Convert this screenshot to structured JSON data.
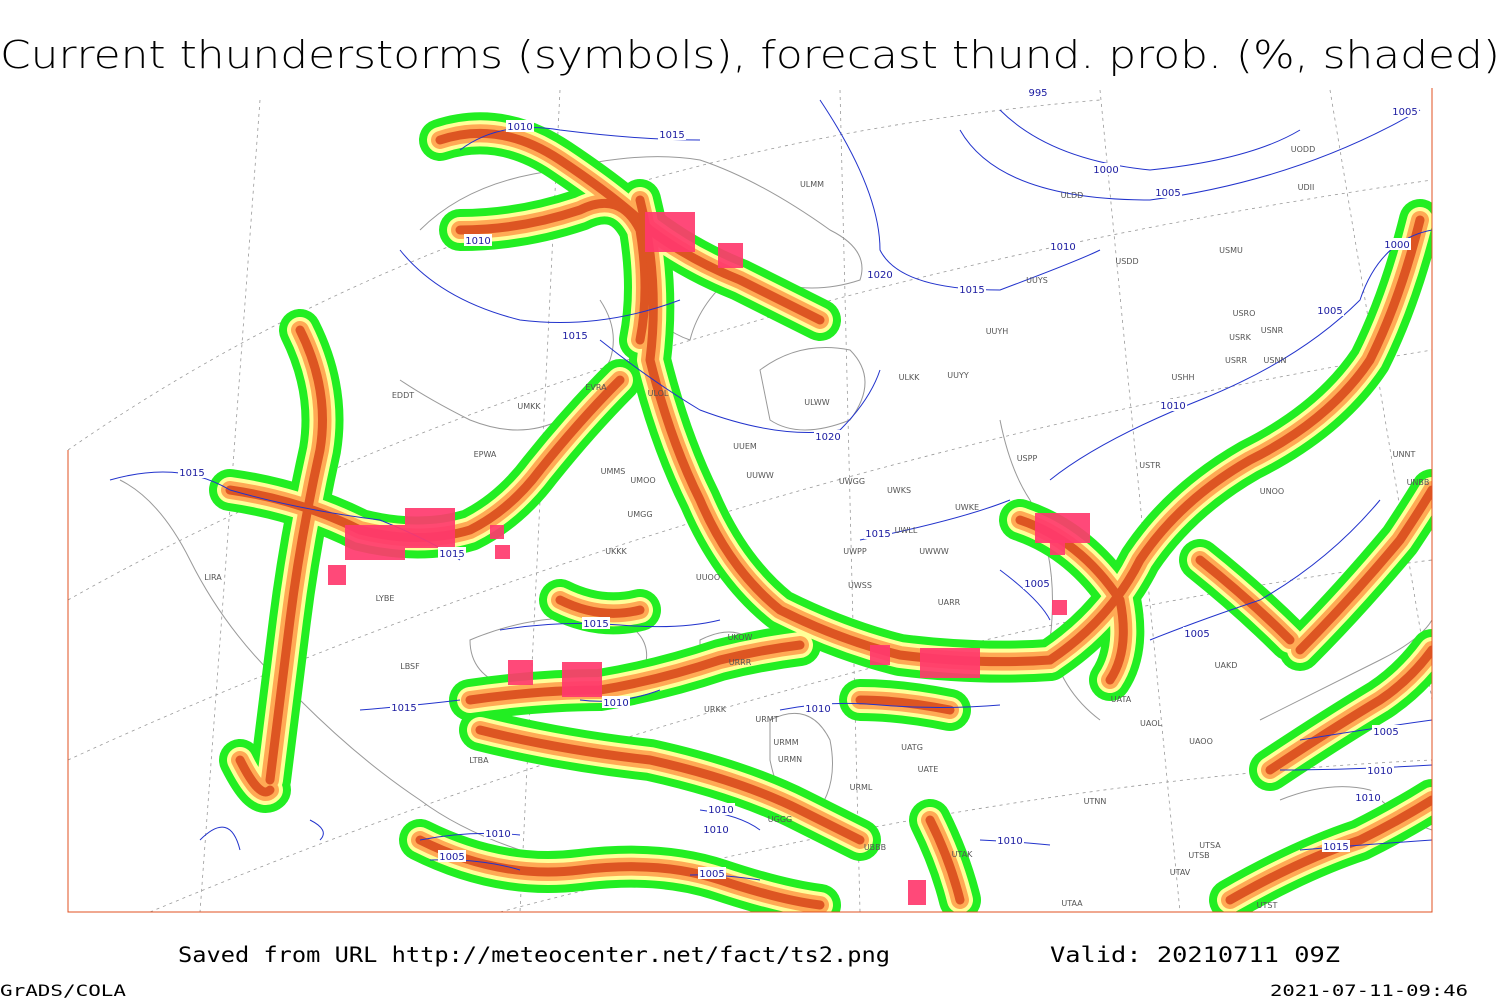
{
  "title": "Current thunderstorms (symbols), forecast thund. prob. (%, shaded)",
  "footer": {
    "source": "Saved from URL http://meteocenter.net/fact/ts2.png",
    "valid": "Valid: 20210711 09Z",
    "software": "GrADS/COLA",
    "timestamp": "2021-07-11-09:46"
  },
  "isobar_labels": [
    "1010",
    "1015",
    "995",
    "1005",
    "1000",
    "1005",
    "1010",
    "1010",
    "1000",
    "1020",
    "1015",
    "1015",
    "1005",
    "1010",
    "1020",
    "1015",
    "1015",
    "1015",
    "1005",
    "1015",
    "1005",
    "1010",
    "1015",
    "1010",
    "1005",
    "1010",
    "1010",
    "1010",
    "1010",
    "1010",
    "1010",
    "1015",
    "1005",
    "1005"
  ],
  "station_labels": [
    "ULMM",
    "ULDD",
    "UODD",
    "UDII",
    "USDD",
    "USMU",
    "UUYS",
    "USRO",
    "USRK",
    "USNR",
    "UUYH",
    "USRR",
    "USNN",
    "ULKK",
    "UUYY",
    "USHH",
    "ULWW",
    "UUEM",
    "UUWW",
    "UWGG",
    "UWKS",
    "USPP",
    "UWKE",
    "UNNT",
    "USTR",
    "UNOO",
    "UNBB",
    "UWLL",
    "UWPP",
    "UWWW",
    "UWSS",
    "UARR",
    "UUOO",
    "UKKK",
    "UMGG",
    "UMOO",
    "UMMS",
    "UMKK",
    "EPWA",
    "EDDT",
    "EVRA",
    "ULOL",
    "LIRA",
    "LYBE",
    "LBSF",
    "LTBA",
    "UKOW",
    "URRR",
    "URKK",
    "URMT",
    "URMM",
    "URMN",
    "URML",
    "UATG",
    "UATE",
    "UATA",
    "UAOL",
    "UAOO",
    "UAKD",
    "UTNN",
    "UBBB",
    "UTAK",
    "UTSA",
    "UTSB",
    "UTAV",
    "UTAA",
    "UTST",
    "UGGG"
  ]
}
